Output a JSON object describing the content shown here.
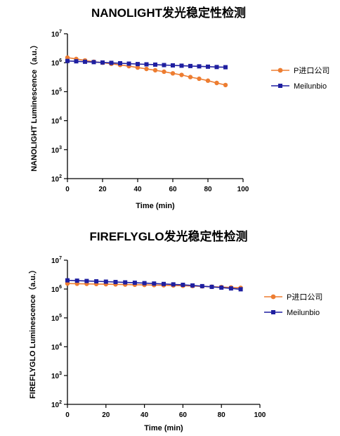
{
  "colors": {
    "p_series": "#ED7D31",
    "m_series": "#1F1FA0",
    "axis": "#000000"
  },
  "chart_data": [
    {
      "type": "line",
      "title": "NANOLIGHT发光稳定性检测",
      "xlabel": "Time (min)",
      "ylabel": "NANOLIGHT Luminescence（a.u.）",
      "xlim": [
        0,
        100
      ],
      "x_ticks": [
        "0",
        "20",
        "40",
        "60",
        "80",
        "100"
      ],
      "ylim_exp": [
        2,
        7
      ],
      "y_scale": "log",
      "y_ticks": [
        {
          "base": "10",
          "exp": "7"
        },
        {
          "base": "10",
          "exp": "6"
        },
        {
          "base": "10",
          "exp": "5"
        },
        {
          "base": "10",
          "exp": "4"
        },
        {
          "base": "10",
          "exp": "3"
        },
        {
          "base": "10",
          "exp": "2"
        }
      ],
      "legend_position": "right",
      "x": [
        0,
        5,
        10,
        15,
        20,
        25,
        30,
        35,
        40,
        45,
        50,
        55,
        60,
        65,
        70,
        75,
        80,
        85,
        90
      ],
      "series": [
        {
          "name": "P进口公司",
          "marker": "circle",
          "values": [
            1500000,
            1350000,
            1200000,
            1080000,
            1000000,
            920000,
            840000,
            760000,
            680000,
            610000,
            550000,
            490000,
            430000,
            380000,
            320000,
            280000,
            240000,
            200000,
            170000
          ]
        },
        {
          "name": "Meilunbio",
          "marker": "square",
          "values": [
            1150000,
            1120000,
            1080000,
            1050000,
            1020000,
            990000,
            960000,
            930000,
            900000,
            880000,
            860000,
            830000,
            810000,
            790000,
            770000,
            750000,
            730000,
            710000,
            700000
          ]
        }
      ]
    },
    {
      "type": "line",
      "title": "FIREFLYGLO发光稳定性检测",
      "xlabel": "Time (min)",
      "ylabel": "FIREFLYGLO Luminescence（a.u.）",
      "xlim": [
        0,
        100
      ],
      "x_ticks": [
        "0",
        "20",
        "40",
        "60",
        "80",
        "100"
      ],
      "ylim_exp": [
        2,
        7
      ],
      "y_scale": "log",
      "y_ticks": [
        {
          "base": "10",
          "exp": "7"
        },
        {
          "base": "10",
          "exp": "6"
        },
        {
          "base": "10",
          "exp": "5"
        },
        {
          "base": "10",
          "exp": "4"
        },
        {
          "base": "10",
          "exp": "3"
        },
        {
          "base": "10",
          "exp": "2"
        }
      ],
      "legend_position": "right",
      "x": [
        0,
        5,
        10,
        15,
        20,
        25,
        30,
        35,
        40,
        45,
        50,
        55,
        60,
        65,
        70,
        75,
        80,
        85,
        90
      ],
      "series": [
        {
          "name": "P进口公司",
          "marker": "circle",
          "values": [
            1550000,
            1530000,
            1510000,
            1490000,
            1470000,
            1450000,
            1430000,
            1410000,
            1390000,
            1370000,
            1350000,
            1330000,
            1300000,
            1270000,
            1240000,
            1200000,
            1170000,
            1130000,
            1100000
          ]
        },
        {
          "name": "Meilunbio",
          "marker": "square",
          "values": [
            2000000,
            1950000,
            1900000,
            1850000,
            1800000,
            1750000,
            1700000,
            1650000,
            1600000,
            1550000,
            1500000,
            1450000,
            1400000,
            1330000,
            1260000,
            1190000,
            1120000,
            1050000,
            980000
          ]
        }
      ]
    }
  ]
}
